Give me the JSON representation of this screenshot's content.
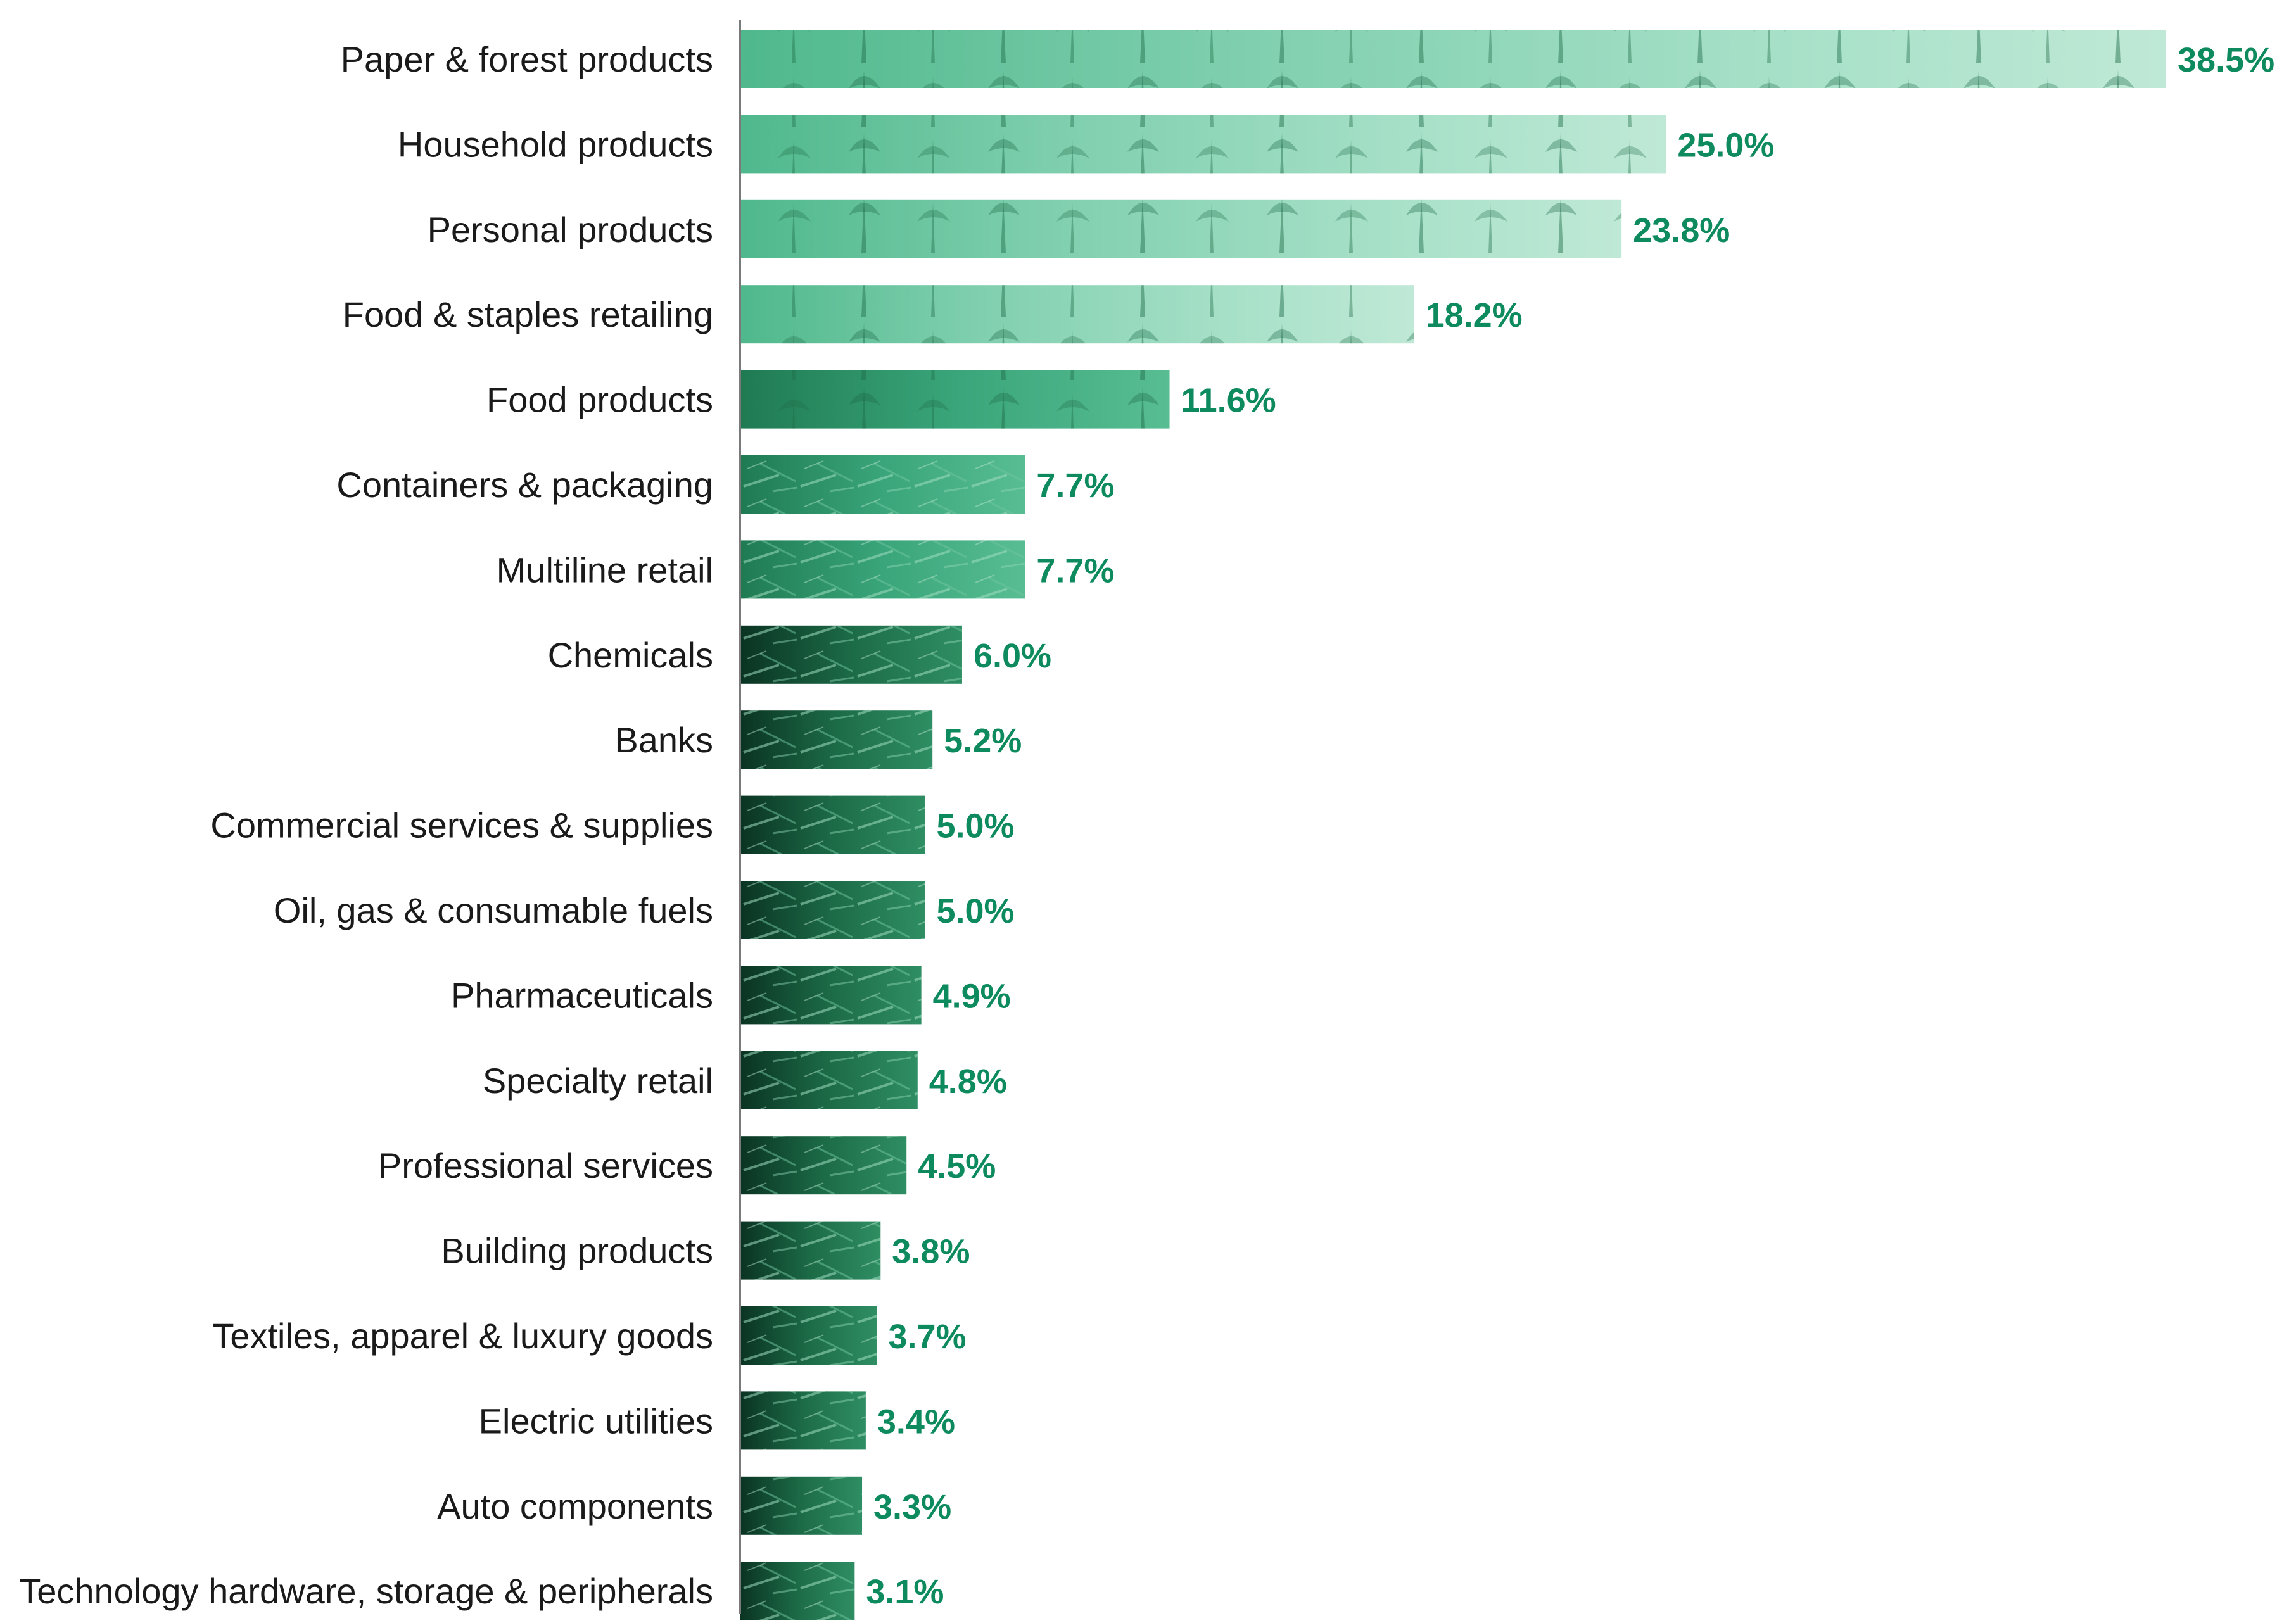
{
  "chart_data": {
    "type": "bar",
    "orientation": "horizontal",
    "title": "",
    "xlabel": "",
    "ylabel": "",
    "xlim": [
      0,
      38.5
    ],
    "grid": false,
    "legend": "none",
    "categories": [
      "Paper & forest products",
      "Household products",
      "Personal products",
      "Food & staples retailing",
      "Food products",
      "Containers & packaging",
      "Multiline retail",
      "Chemicals",
      "Banks",
      "Commercial services & supplies",
      "Oil, gas & consumable fuels",
      "Pharmaceuticals",
      "Specialty retail",
      "Professional services",
      "Building products",
      "Textiles, apparel & luxury goods",
      "Electric utilities",
      "Auto components",
      "Technology hardware, storage & peripherals"
    ],
    "values": [
      38.5,
      25.0,
      23.8,
      18.2,
      11.6,
      7.7,
      7.7,
      6.0,
      5.2,
      5.0,
      5.0,
      4.9,
      4.8,
      4.5,
      3.8,
      3.7,
      3.4,
      3.3,
      3.1
    ],
    "value_labels": [
      "38.5%",
      "25.0%",
      "23.8%",
      "18.2%",
      "11.6%",
      "7.7%",
      "7.7%",
      "6.0%",
      "5.2%",
      "5.0%",
      "5.0%",
      "4.9%",
      "4.8%",
      "4.5%",
      "3.8%",
      "3.7%",
      "3.4%",
      "3.3%",
      "3.1%"
    ]
  },
  "colors": {
    "value_label": "#0e8a5f",
    "category_label": "#1a1a1a",
    "axis": "#7a7a7a",
    "bar_light": "#8fd6b8",
    "bar_mid": "#3aa57a",
    "bar_dark": "#0b3d27"
  }
}
